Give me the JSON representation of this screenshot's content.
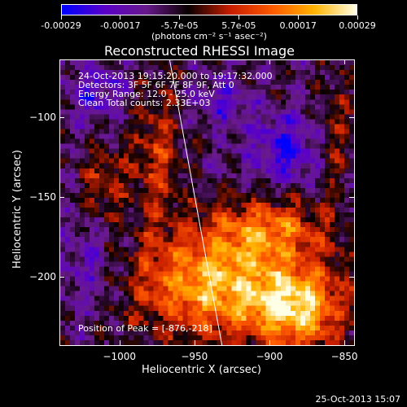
{
  "colorbar": {
    "tick_labels": [
      "-0.00029",
      "-0.00017",
      "-5.7e-05",
      "5.7e-05",
      "0.00017",
      "0.00029"
    ],
    "units": "(photons cm⁻² s⁻¹ asec⁻²)",
    "min": -0.00029,
    "max": 0.00029,
    "colormap": [
      "#0000ff",
      "#5a00c8",
      "#6a1a8c",
      "#0a0000",
      "#c81e00",
      "#ff5a00",
      "#ffb400",
      "#ffffe6"
    ]
  },
  "chart_data": {
    "type": "heatmap",
    "title": "Reconstructed RHESSI Image",
    "xlabel": "Heliocentric X (arcsec)",
    "ylabel": "Heliocentric Y (arcsec)",
    "xlim": [
      -1040,
      -843
    ],
    "ylim": [
      -243,
      -64
    ],
    "x_ticks": [
      -1000,
      -950,
      -900,
      -850
    ],
    "y_ticks": [
      -100,
      -150,
      -200
    ],
    "x_tick_labels": [
      "−1000",
      "−950",
      "−900",
      "−850"
    ],
    "y_tick_labels": [
      "−100",
      "−150",
      "−200"
    ],
    "grid": false,
    "limb_line": [
      [
        -967,
        -64
      ],
      [
        -932,
        -243
      ]
    ],
    "peak_marker": [
      -876,
      -218
    ],
    "annotations": [
      "24-Oct-2013 19:15:20.000 to 19:17:32.000",
      "Detectors: 3F 5F 6F 7F 8F 9F, Att 0",
      "Energy Range: 12.0 - 25.0 keV",
      "Clean    Total counts: 2.33E+03"
    ],
    "peak_label": "Position of Peak = [-876,-218]",
    "intensity_description": "noisy clean map; negative (blue/purple) upper-left and center-top, positive orange/yellow bands left-center and strong bright yellow in lower region from x=-980 to -860"
  },
  "footer": {
    "timestamp": "25-Oct-2013 15:07"
  }
}
